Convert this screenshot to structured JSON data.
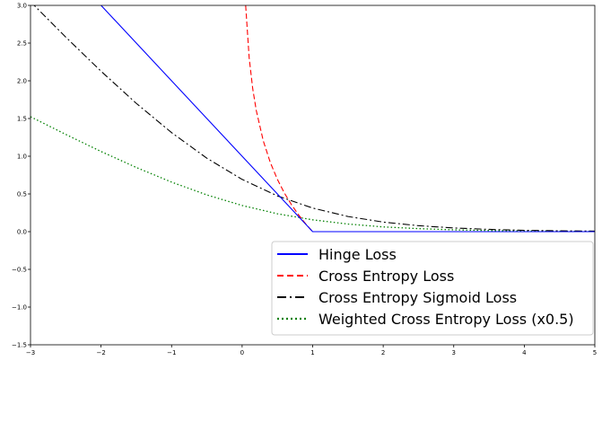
{
  "chart_data": {
    "type": "line",
    "title": "",
    "xlabel": "",
    "ylabel": "",
    "xlim": [
      -3,
      5
    ],
    "ylim": [
      -1.5,
      3.0
    ],
    "grid": false,
    "legend_position": "lower-right",
    "xticks": [
      "−3",
      "−2",
      "−1",
      "0",
      "1",
      "2",
      "3",
      "4",
      "5"
    ],
    "xtick_values": [
      -3,
      -2,
      -1,
      0,
      1,
      2,
      3,
      4,
      5
    ],
    "yticks": [
      "−1.5",
      "−1.0",
      "−0.5",
      "0.0",
      "0.5",
      "1.0",
      "1.5",
      "2.0",
      "2.5",
      "3.0"
    ],
    "ytick_values": [
      -1.5,
      -1.0,
      -0.5,
      0.0,
      0.5,
      1.0,
      1.5,
      2.0,
      2.5,
      3.0
    ],
    "series": [
      {
        "name": "Hinge Loss",
        "color": "#0000ff",
        "style": "solid",
        "x": [
          -3,
          -2,
          -1,
          0,
          1,
          2,
          3,
          4,
          5
        ],
        "y": [
          4.0,
          3.0,
          2.0,
          1.0,
          0.0,
          0.0,
          0.0,
          0.0,
          0.0
        ]
      },
      {
        "name": "Cross Entropy Loss",
        "color": "#ff0000",
        "style": "dashed",
        "x": [
          0.05,
          0.1,
          0.15,
          0.2,
          0.3,
          0.4,
          0.5,
          0.6,
          0.7,
          0.8,
          0.9,
          1.0
        ],
        "y": [
          3.0,
          2.303,
          1.897,
          1.609,
          1.204,
          0.916,
          0.693,
          0.511,
          0.357,
          0.223,
          0.105,
          0.0
        ]
      },
      {
        "name": "Cross Entropy Sigmoid Loss",
        "color": "#000000",
        "style": "dashdot",
        "x": [
          -3,
          -2.5,
          -2,
          -1.5,
          -1,
          -0.5,
          0,
          0.5,
          1,
          1.5,
          2,
          2.5,
          3,
          3.5,
          4,
          4.5,
          5
        ],
        "y": [
          3.049,
          2.579,
          2.127,
          1.701,
          1.313,
          0.974,
          0.693,
          0.474,
          0.313,
          0.201,
          0.127,
          0.079,
          0.049,
          0.03,
          0.018,
          0.011,
          0.007
        ]
      },
      {
        "name": "Weighted Cross Entropy Loss (x0.5)",
        "color": "#008000",
        "style": "dotted",
        "x": [
          -3,
          -2.5,
          -2,
          -1.5,
          -1,
          -0.5,
          0,
          0.5,
          1,
          1.5,
          2,
          2.5,
          3,
          3.5,
          4,
          4.5,
          5
        ],
        "y": [
          1.524,
          1.289,
          1.063,
          0.851,
          0.657,
          0.487,
          0.347,
          0.237,
          0.157,
          0.101,
          0.063,
          0.04,
          0.024,
          0.015,
          0.009,
          0.005,
          0.003
        ]
      }
    ]
  }
}
